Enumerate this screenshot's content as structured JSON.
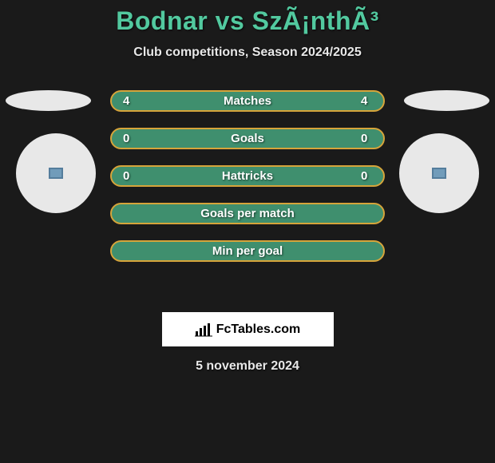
{
  "title": "Bodnar vs SzÃ¡nthÃ³",
  "subtitle": "Club competitions, Season 2024/2025",
  "date": "5 november 2024",
  "footer": {
    "brand": "FcTables.com"
  },
  "colors": {
    "row_bg": "#3f8f6e",
    "row_border": "#d6a43a",
    "title": "#52c99f"
  },
  "rows": [
    {
      "label": "Matches",
      "left": "4",
      "right": "4",
      "has_values": true
    },
    {
      "label": "Goals",
      "left": "0",
      "right": "0",
      "has_values": true
    },
    {
      "label": "Hattricks",
      "left": "0",
      "right": "0",
      "has_values": true
    },
    {
      "label": "Goals per match",
      "left": "",
      "right": "",
      "has_values": false
    },
    {
      "label": "Min per goal",
      "left": "",
      "right": "",
      "has_values": false
    }
  ],
  "row_style": {
    "height": 27,
    "radius": 14,
    "gap": 20,
    "border_width": 2,
    "fontsize": 15
  }
}
